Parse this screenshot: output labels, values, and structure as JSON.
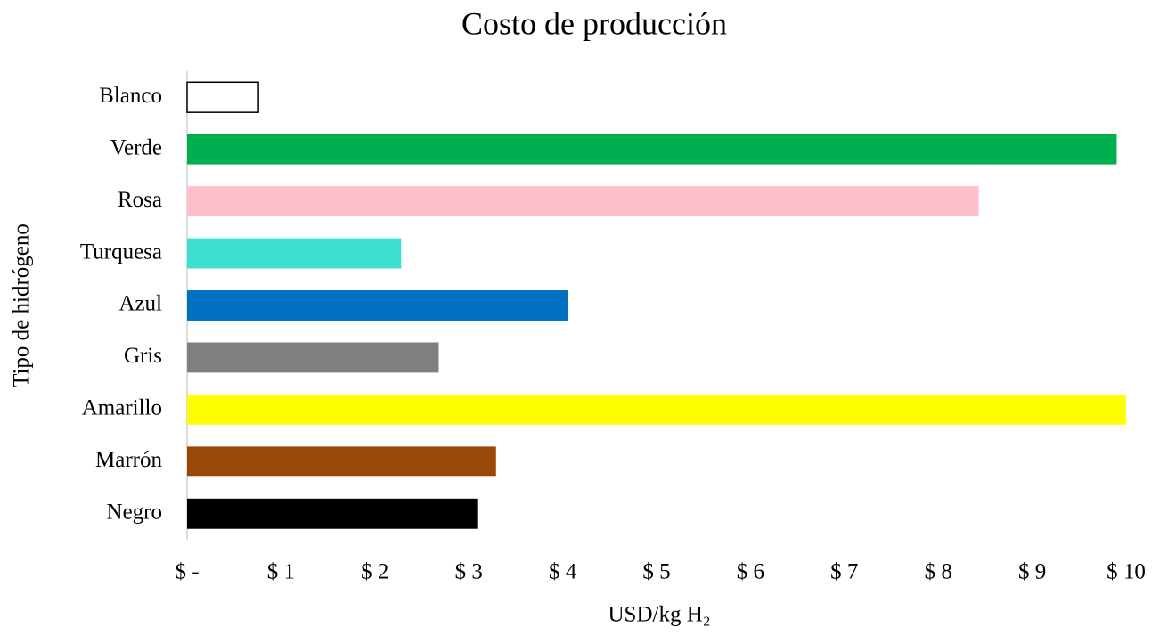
{
  "chart_data": {
    "type": "bar",
    "orientation": "horizontal",
    "title": "Costo de producción",
    "x_label": "USD/kg H₂",
    "y_label": "Tipo de hidrógeno",
    "categories": [
      "Blanco",
      "Verde",
      "Rosa",
      "Turquesa",
      "Azul",
      "Gris",
      "Amarillo",
      "Marrón",
      "Negro"
    ],
    "values": [
      0.76,
      9.9,
      8.43,
      2.28,
      4.06,
      2.68,
      10,
      3.29,
      3.09
    ],
    "colors": [
      "#ffffff",
      "#00b050",
      "#ffc0cb",
      "#40e0d0",
      "#0070c0",
      "#808080",
      "#ffff00",
      "#984807",
      "#000000"
    ],
    "xlim": [
      0,
      10
    ],
    "xticks": [
      {
        "value": 0,
        "label": "$ -"
      },
      {
        "value": 1,
        "label": "$ 1"
      },
      {
        "value": 2,
        "label": "$ 2"
      },
      {
        "value": 3,
        "label": "$ 3"
      },
      {
        "value": 4,
        "label": "$ 4"
      },
      {
        "value": 5,
        "label": "$ 5"
      },
      {
        "value": 6,
        "label": "$ 6"
      },
      {
        "value": 7,
        "label": "$ 7"
      },
      {
        "value": 8,
        "label": "$ 8"
      },
      {
        "value": 9,
        "label": "$ 9"
      },
      {
        "value": 10,
        "label": "$ 10"
      }
    ],
    "grid": false
  }
}
